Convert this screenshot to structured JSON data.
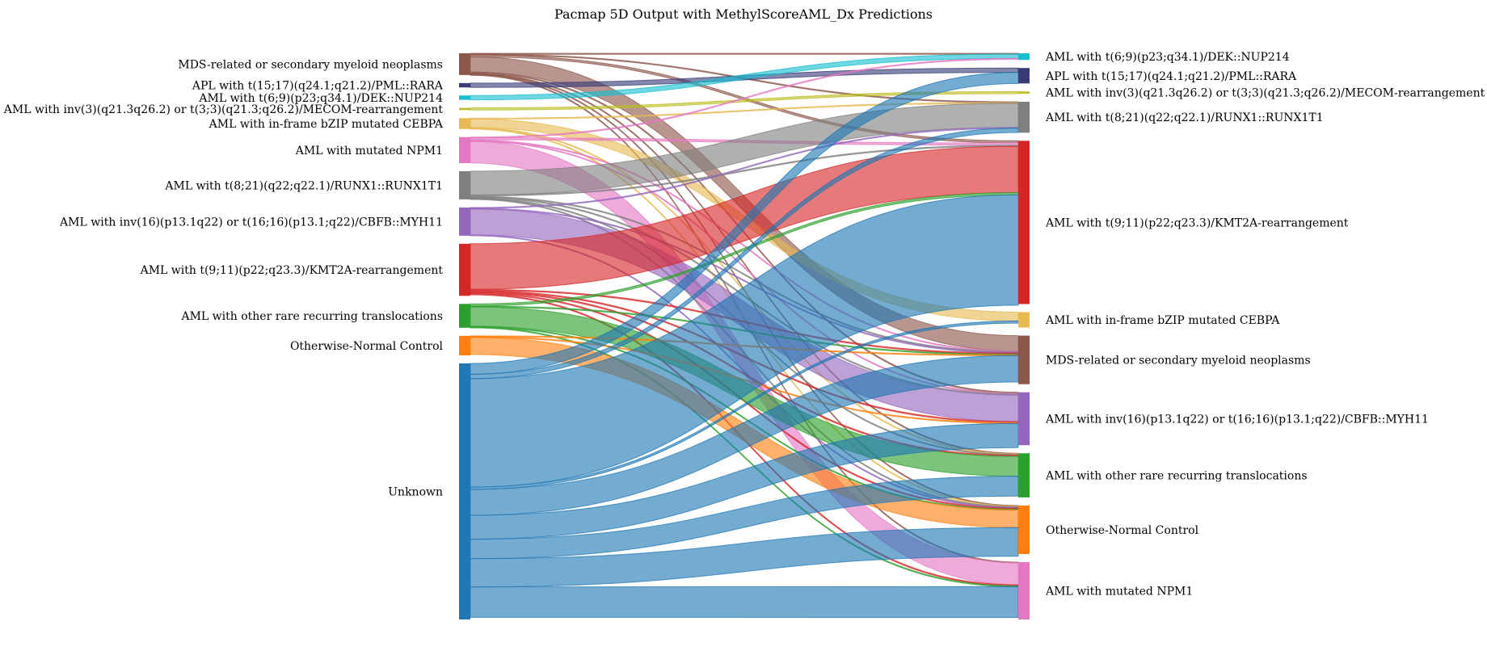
{
  "chart_data": {
    "type": "sankey",
    "title": "Pacmap 5D Output with MethylScoreAML_Dx Predictions",
    "left_nodes": [
      {
        "name": "MDS-related or secondary myeloid neoplasms",
        "color": "#8c564b",
        "value": 10
      },
      {
        "name": "APL with t(15;17)(q24.1;q21.2)/PML::RARA",
        "color": "#393b79",
        "value": 2
      },
      {
        "name": "AML with t(6;9)(p23;q34.1)/DEK::NUP214",
        "color": "#17becf",
        "value": 2
      },
      {
        "name": "AML with inv(3)(q21.3q26.2) or t(3;3)(q21.3;q26.2)/MECOM-rearrangement",
        "color": "#bcbd22",
        "value": 1
      },
      {
        "name": "AML with in-frame bZIP mutated CEBPA",
        "color": "#e7ba52",
        "value": 5
      },
      {
        "name": "AML with mutated NPM1",
        "color": "#e377c2",
        "value": 12
      },
      {
        "name": "AML with t(8;21)(q22;q22.1)/RUNX1::RUNX1T1",
        "color": "#7f7f7f",
        "value": 13
      },
      {
        "name": "AML with inv(16)(p13.1q22) or t(16;16)(p13.1;q22)/CBFB::MYH11",
        "color": "#9467bd",
        "value": 13
      },
      {
        "name": "AML with t(9;11)(p22;q23.3)/KMT2A-rearrangement",
        "color": "#d62728",
        "value": 24
      },
      {
        "name": "AML with other rare recurring translocations",
        "color": "#2ca02c",
        "value": 11
      },
      {
        "name": "Otherwise-Normal Control",
        "color": "#ff7f0e",
        "value": 9
      },
      {
        "name": "Unknown",
        "color": "#1f77b4",
        "value": 118
      }
    ],
    "right_nodes": [
      {
        "name": "AML with t(6;9)(p23;q34.1)/DEK::NUP214",
        "color": "#17becf",
        "value": 3
      },
      {
        "name": "APL with t(15;17)(q24.1;q21.2)/PML::RARA",
        "color": "#393b79",
        "value": 7
      },
      {
        "name": "AML with inv(3)(q21.3q26.2) or t(3;3)(q21.3;q26.2)/MECOM-rearrangement",
        "color": "#bcbd22",
        "value": 1
      },
      {
        "name": "AML with t(8;21)(q22;q22.1)/RUNX1::RUNX1T1",
        "color": "#7f7f7f",
        "value": 14
      },
      {
        "name": "AML with t(9;11)(p22;q23.3)/KMT2A-rearrangement",
        "color": "#d62728",
        "value": 74
      },
      {
        "name": "AML with in-frame bZIP mutated CEBPA",
        "color": "#e7ba52",
        "value": 7
      },
      {
        "name": "MDS-related or secondary myeloid neoplasms",
        "color": "#8c564b",
        "value": 22
      },
      {
        "name": "AML with inv(16)(p13.1q22) or t(16;16)(p13.1;q22)/CBFB::MYH11",
        "color": "#9467bd",
        "value": 24
      },
      {
        "name": "AML with other rare recurring translocations",
        "color": "#2ca02c",
        "value": 20
      },
      {
        "name": "Otherwise-Normal Control",
        "color": "#ff7f0e",
        "value": 22
      },
      {
        "name": "AML with mutated NPM1",
        "color": "#e377c2",
        "value": 26
      }
    ],
    "flows": [
      {
        "source": 0,
        "target": 6,
        "value": 7
      },
      {
        "source": 0,
        "target": 0,
        "value": 0.3
      },
      {
        "source": 0,
        "target": 4,
        "value": 1
      },
      {
        "source": 0,
        "target": 3,
        "value": 0.3
      },
      {
        "source": 0,
        "target": 7,
        "value": 0.5
      },
      {
        "source": 0,
        "target": 8,
        "value": 0.3
      },
      {
        "source": 0,
        "target": 10,
        "value": 0.3
      },
      {
        "source": 0,
        "target": 9,
        "value": 0.3
      },
      {
        "source": 1,
        "target": 1,
        "value": 2
      },
      {
        "source": 2,
        "target": 0,
        "value": 2
      },
      {
        "source": 3,
        "target": 2,
        "value": 1
      },
      {
        "source": 4,
        "target": 5,
        "value": 4
      },
      {
        "source": 4,
        "target": 3,
        "value": 0.3
      },
      {
        "source": 4,
        "target": 8,
        "value": 0.3
      },
      {
        "source": 4,
        "target": 9,
        "value": 0.3
      },
      {
        "source": 5,
        "target": 10,
        "value": 10
      },
      {
        "source": 5,
        "target": 0,
        "value": 0.3
      },
      {
        "source": 5,
        "target": 4,
        "value": 1
      },
      {
        "source": 5,
        "target": 7,
        "value": 0.3
      },
      {
        "source": 5,
        "target": 6,
        "value": 0.3
      },
      {
        "source": 6,
        "target": 3,
        "value": 11
      },
      {
        "source": 6,
        "target": 4,
        "value": 0.5
      },
      {
        "source": 6,
        "target": 7,
        "value": 0.5
      },
      {
        "source": 6,
        "target": 6,
        "value": 0.3
      },
      {
        "source": 6,
        "target": 9,
        "value": 0.3
      },
      {
        "source": 6,
        "target": 8,
        "value": 0.3
      },
      {
        "source": 7,
        "target": 7,
        "value": 12
      },
      {
        "source": 7,
        "target": 3,
        "value": 0.3
      },
      {
        "source": 7,
        "target": 6,
        "value": 0.3
      },
      {
        "source": 7,
        "target": 9,
        "value": 0.3
      },
      {
        "source": 8,
        "target": 4,
        "value": 21
      },
      {
        "source": 8,
        "target": 6,
        "value": 0.5
      },
      {
        "source": 8,
        "target": 7,
        "value": 0.5
      },
      {
        "source": 8,
        "target": 9,
        "value": 0.5
      },
      {
        "source": 8,
        "target": 10,
        "value": 0.5
      },
      {
        "source": 8,
        "target": 8,
        "value": 0.5
      },
      {
        "source": 9,
        "target": 8,
        "value": 9
      },
      {
        "source": 9,
        "target": 4,
        "value": 1
      },
      {
        "source": 9,
        "target": 6,
        "value": 0.3
      },
      {
        "source": 9,
        "target": 9,
        "value": 0.3
      },
      {
        "source": 9,
        "target": 10,
        "value": 0.3
      },
      {
        "source": 10,
        "target": 9,
        "value": 8
      },
      {
        "source": 10,
        "target": 7,
        "value": 0.3
      },
      {
        "source": 10,
        "target": 6,
        "value": 0.3
      },
      {
        "source": 11,
        "target": 1,
        "value": 5
      },
      {
        "source": 11,
        "target": 4,
        "value": 50
      },
      {
        "source": 11,
        "target": 6,
        "value": 12
      },
      {
        "source": 11,
        "target": 7,
        "value": 11
      },
      {
        "source": 11,
        "target": 8,
        "value": 9
      },
      {
        "source": 11,
        "target": 9,
        "value": 13
      },
      {
        "source": 11,
        "target": 10,
        "value": 14
      },
      {
        "source": 11,
        "target": 5,
        "value": 1
      },
      {
        "source": 11,
        "target": 3,
        "value": 2
      }
    ]
  }
}
